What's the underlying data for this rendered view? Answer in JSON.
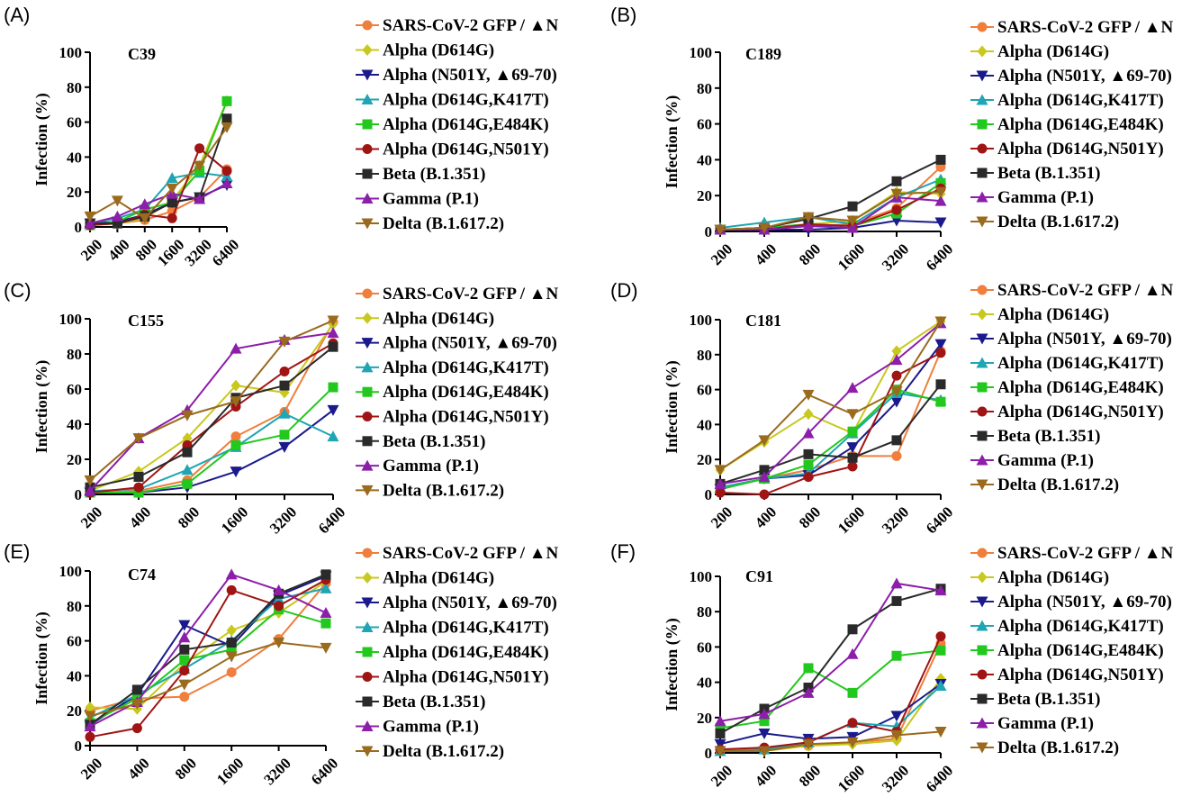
{
  "colors": {
    "SARS-CoV-2 GFP / ▲N": "#f07e3c",
    "Alpha (D614G)": "#c8c81e",
    "Alpha (N501Y, ▲69-70)": "#1a1a8c",
    "Alpha (D614G,K417T)": "#1fa5b4",
    "Alpha (D614G,E484K)": "#22c81e",
    "Alpha (D614G,N501Y)": "#a01414",
    "Beta (B.1.351)": "#2a2a2a",
    "Gamma (P.1)": "#8c1eaa",
    "Delta (B.1.617.2)": "#9a6a1e"
  },
  "markers": [
    "circle",
    "diamond",
    "triangle-down",
    "triangle-up",
    "square",
    "circle",
    "square",
    "triangle-up",
    "triangle-down"
  ],
  "legend": [
    "SARS-CoV-2 GFP / ▲N",
    "Alpha (D614G)",
    "Alpha (N501Y, ▲69-70)",
    "Alpha (D614G,K417T)",
    "Alpha (D614G,E484K)",
    "Alpha (D614G,N501Y)",
    "Beta (B.1.351)",
    "Gamma (P.1)",
    "Delta (B.1.617.2)"
  ],
  "chart_data": [
    {
      "type": "line",
      "panel": "(A)",
      "title": "C39",
      "ylabel": "Infection (%)",
      "categories": [
        "200",
        "400",
        "800",
        "1600",
        "3200",
        "6400"
      ],
      "ylim": [
        0,
        100
      ],
      "yticks": [
        "0",
        "20",
        "40",
        "60",
        "80",
        "100"
      ],
      "series": [
        {
          "name": "SARS-CoV-2 GFP / ▲N",
          "values": [
            1,
            2,
            4,
            9,
            17,
            33
          ]
        },
        {
          "name": "Alpha (D614G)",
          "values": [
            1,
            2,
            5,
            15,
            35,
            72
          ]
        },
        {
          "name": "Alpha (N501Y, ▲69-70)",
          "values": [
            2,
            3,
            7,
            14,
            17,
            24
          ]
        },
        {
          "name": "Alpha (D614G,K417T)",
          "values": [
            2,
            5,
            10,
            28,
            31,
            29
          ]
        },
        {
          "name": "Alpha (D614G,E484K)",
          "values": [
            1,
            3,
            10,
            14,
            32,
            72
          ]
        },
        {
          "name": "Alpha (D614G,N501Y)",
          "values": [
            1,
            2,
            7,
            5,
            45,
            32
          ]
        },
        {
          "name": "Beta (B.1.351)",
          "values": [
            2,
            2,
            6,
            14,
            17,
            62
          ]
        },
        {
          "name": "Gamma (P.1)",
          "values": [
            2,
            6,
            13,
            19,
            16,
            25
          ]
        },
        {
          "name": "Delta (B.1.617.2)",
          "values": [
            6,
            15,
            5,
            22,
            35,
            57
          ]
        }
      ]
    },
    {
      "type": "line",
      "panel": "(B)",
      "title": "C189",
      "ylabel": "Infection (%)",
      "categories": [
        "200",
        "400",
        "800",
        "1600",
        "3200",
        "6400"
      ],
      "ylim": [
        0,
        100
      ],
      "yticks": [
        "0",
        "20",
        "40",
        "60",
        "80",
        "100"
      ],
      "series": [
        {
          "name": "SARS-CoV-2 GFP / ▲N",
          "values": [
            1,
            1,
            3,
            4,
            13,
            36
          ]
        },
        {
          "name": "Alpha (D614G)",
          "values": [
            1,
            2,
            4,
            6,
            22,
            21
          ]
        },
        {
          "name": "Alpha (N501Y, ▲69-70)",
          "values": [
            1,
            1,
            1,
            2,
            6,
            5
          ]
        },
        {
          "name": "Alpha (D614G,K417T)",
          "values": [
            2,
            5,
            8,
            4,
            19,
            29
          ]
        },
        {
          "name": "Alpha (D614G,E484K)",
          "values": [
            1,
            2,
            4,
            3,
            10,
            27
          ]
        },
        {
          "name": "Alpha (D614G,N501Y)",
          "values": [
            1,
            1,
            4,
            3,
            12,
            24
          ]
        },
        {
          "name": "Beta (B.1.351)",
          "values": [
            1,
            2,
            7,
            14,
            28,
            40
          ]
        },
        {
          "name": "Gamma (P.1)",
          "values": [
            1,
            1,
            3,
            2,
            19,
            17
          ]
        },
        {
          "name": "Delta (B.1.617.2)",
          "values": [
            1,
            2,
            8,
            6,
            21,
            22
          ]
        }
      ]
    },
    {
      "type": "line",
      "panel": "(C)",
      "title": "C155",
      "ylabel": "Infection (%)",
      "categories": [
        "200",
        "400",
        "800",
        "1600",
        "3200",
        "6400"
      ],
      "ylim": [
        0,
        100
      ],
      "yticks": [
        "0",
        "20",
        "40",
        "60",
        "80",
        "100"
      ],
      "series": [
        {
          "name": "SARS-CoV-2 GFP / ▲N",
          "values": [
            1,
            2,
            8,
            33,
            47,
            98
          ]
        },
        {
          "name": "Alpha (D614G)",
          "values": [
            2,
            13,
            32,
            62,
            58,
            97
          ]
        },
        {
          "name": "Alpha (N501Y, ▲69-70)",
          "values": [
            1,
            1,
            4,
            13,
            27,
            48
          ]
        },
        {
          "name": "Alpha (D614G,K417T)",
          "values": [
            2,
            3,
            14,
            27,
            46,
            33
          ]
        },
        {
          "name": "Alpha (D614G,E484K)",
          "values": [
            1,
            1,
            6,
            28,
            34,
            61
          ]
        },
        {
          "name": "Alpha (D614G,N501Y)",
          "values": [
            1,
            4,
            28,
            50,
            70,
            86
          ]
        },
        {
          "name": "Beta (B.1.351)",
          "values": [
            4,
            10,
            24,
            55,
            62,
            84
          ]
        },
        {
          "name": "Gamma (P.1)",
          "values": [
            2,
            32,
            48,
            83,
            88,
            92
          ]
        },
        {
          "name": "Delta (B.1.617.2)",
          "values": [
            8,
            32,
            45,
            53,
            87,
            99
          ]
        }
      ]
    },
    {
      "type": "line",
      "panel": "(D)",
      "title": "C181",
      "ylabel": "Infection (%)",
      "categories": [
        "200",
        "400",
        "800",
        "1600",
        "3200",
        "6400"
      ],
      "ylim": [
        0,
        100
      ],
      "yticks": [
        "0",
        "20",
        "40",
        "60",
        "80",
        "100"
      ],
      "series": [
        {
          "name": "SARS-CoV-2 GFP / ▲N",
          "values": [
            4,
            9,
            14,
            22,
            22,
            82
          ]
        },
        {
          "name": "Alpha (D614G)",
          "values": [
            14,
            30,
            46,
            35,
            82,
            99
          ]
        },
        {
          "name": "Alpha (N501Y, ▲69-70)",
          "values": [
            3,
            9,
            11,
            27,
            53,
            86
          ]
        },
        {
          "name": "Alpha (D614G,K417T)",
          "values": [
            4,
            9,
            12,
            35,
            58,
            54
          ]
        },
        {
          "name": "Alpha (D614G,E484K)",
          "values": [
            3,
            9,
            17,
            36,
            60,
            53
          ]
        },
        {
          "name": "Alpha (D614G,N501Y)",
          "values": [
            1,
            0,
            10,
            16,
            68,
            81
          ]
        },
        {
          "name": "Beta (B.1.351)",
          "values": [
            6,
            14,
            23,
            21,
            31,
            63
          ]
        },
        {
          "name": "Gamma (P.1)",
          "values": [
            6,
            10,
            35,
            61,
            77,
            98
          ]
        },
        {
          "name": "Delta (B.1.617.2)",
          "values": [
            14,
            31,
            57,
            46,
            59,
            99
          ]
        }
      ]
    },
    {
      "type": "line",
      "panel": "(E)",
      "title": "C74",
      "ylabel": "Infection (%)",
      "categories": [
        "200",
        "400",
        "800",
        "1600",
        "3200",
        "6400"
      ],
      "ylim": [
        0,
        100
      ],
      "yticks": [
        "0",
        "20",
        "40",
        "60",
        "80",
        "100"
      ],
      "series": [
        {
          "name": "SARS-CoV-2 GFP / ▲N",
          "values": [
            20,
            27,
            28,
            42,
            61,
            93
          ]
        },
        {
          "name": "Alpha (D614G)",
          "values": [
            22,
            21,
            47,
            66,
            76,
            94
          ]
        },
        {
          "name": "Alpha (N501Y, ▲69-70)",
          "values": [
            12,
            29,
            69,
            57,
            86,
            97
          ]
        },
        {
          "name": "Alpha (D614G,K417T)",
          "values": [
            16,
            29,
            44,
            60,
            84,
            90
          ]
        },
        {
          "name": "Alpha (D614G,E484K)",
          "values": [
            13,
            27,
            49,
            55,
            78,
            70
          ]
        },
        {
          "name": "Alpha (D614G,N501Y)",
          "values": [
            5,
            10,
            43,
            89,
            80,
            95
          ]
        },
        {
          "name": "Beta (B.1.351)",
          "values": [
            12,
            32,
            55,
            59,
            87,
            98
          ]
        },
        {
          "name": "Gamma (P.1)",
          "values": [
            11,
            25,
            62,
            98,
            89,
            76
          ]
        },
        {
          "name": "Delta (B.1.617.2)",
          "values": [
            17,
            24,
            35,
            51,
            59,
            56
          ]
        }
      ]
    },
    {
      "type": "line",
      "panel": "(F)",
      "title": "C91",
      "ylabel": "Infection (%)",
      "categories": [
        "200",
        "400",
        "800",
        "1600",
        "3200",
        "6400"
      ],
      "ylim": [
        0,
        100
      ],
      "yticks": [
        "0",
        "20",
        "40",
        "60",
        "80",
        "100"
      ],
      "series": [
        {
          "name": "SARS-CoV-2 GFP / ▲N",
          "values": [
            1,
            2,
            4,
            6,
            8,
            62
          ]
        },
        {
          "name": "Alpha (D614G)",
          "values": [
            1,
            1,
            4,
            5,
            7,
            42
          ]
        },
        {
          "name": "Alpha (N501Y, ▲69-70)",
          "values": [
            5,
            11,
            8,
            9,
            21,
            39
          ]
        },
        {
          "name": "Alpha (D614G,K417T)",
          "values": [
            1,
            2,
            6,
            17,
            15,
            38
          ]
        },
        {
          "name": "Alpha (D614G,E484K)",
          "values": [
            14,
            18,
            48,
            34,
            55,
            58
          ]
        },
        {
          "name": "Alpha (D614G,N501Y)",
          "values": [
            2,
            3,
            6,
            17,
            12,
            66
          ]
        },
        {
          "name": "Beta (B.1.351)",
          "values": [
            11,
            25,
            37,
            70,
            86,
            93
          ]
        },
        {
          "name": "Gamma (P.1)",
          "values": [
            18,
            22,
            34,
            56,
            96,
            92
          ]
        },
        {
          "name": "Delta (B.1.617.2)",
          "values": [
            1,
            1,
            5,
            6,
            10,
            12
          ]
        }
      ]
    }
  ]
}
